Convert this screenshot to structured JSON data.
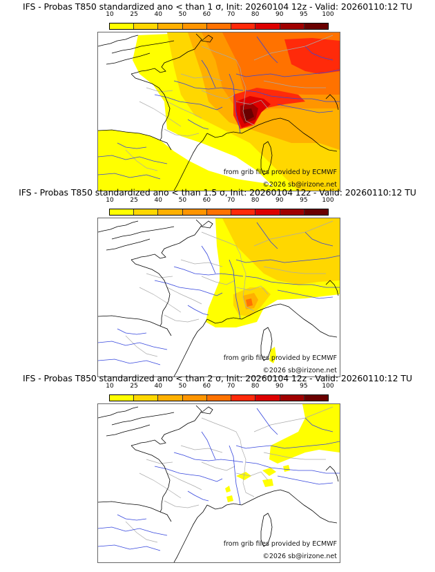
{
  "colorbar": {
    "ticks": [
      "10",
      "25",
      "40",
      "50",
      "60",
      "70",
      "80",
      "90",
      "95",
      "100"
    ],
    "colors": [
      "#ffff00",
      "#ffd700",
      "#ffb000",
      "#ff9500",
      "#ff7200",
      "#ff2a0a",
      "#dd0000",
      "#a00000",
      "#6a0000"
    ]
  },
  "panels": [
    {
      "title": "IFS - Probas T850  standardized ano < than 1 σ, Init: 20260104 12z - Valid: 20260110:12 TU",
      "threshold_sigma": 1,
      "credit_source": "from grib files provided by ECMWF",
      "credit_copyright": "©2026 sb@irizone.net"
    },
    {
      "title": "IFS - Probas T850  standardized ano < than 1.5 σ, Init: 20260104 12z - Valid: 20260110:12 TU",
      "threshold_sigma": 1.5,
      "credit_source": "from grib files provided by ECMWF",
      "credit_copyright": "©2026 sb@irizone.net"
    },
    {
      "title": "IFS - Probas T850  standardized ano < than 2 σ, Init: 20260104 12z - Valid: 20260110:12 TU",
      "threshold_sigma": 2,
      "credit_source": "from grib files provided by ECMWF",
      "credit_copyright": "©2026 sb@irizone.net"
    }
  ],
  "colors": {
    "coastline": "#000000",
    "rivers": "#3344dd",
    "borders": "#aaaaaa"
  }
}
